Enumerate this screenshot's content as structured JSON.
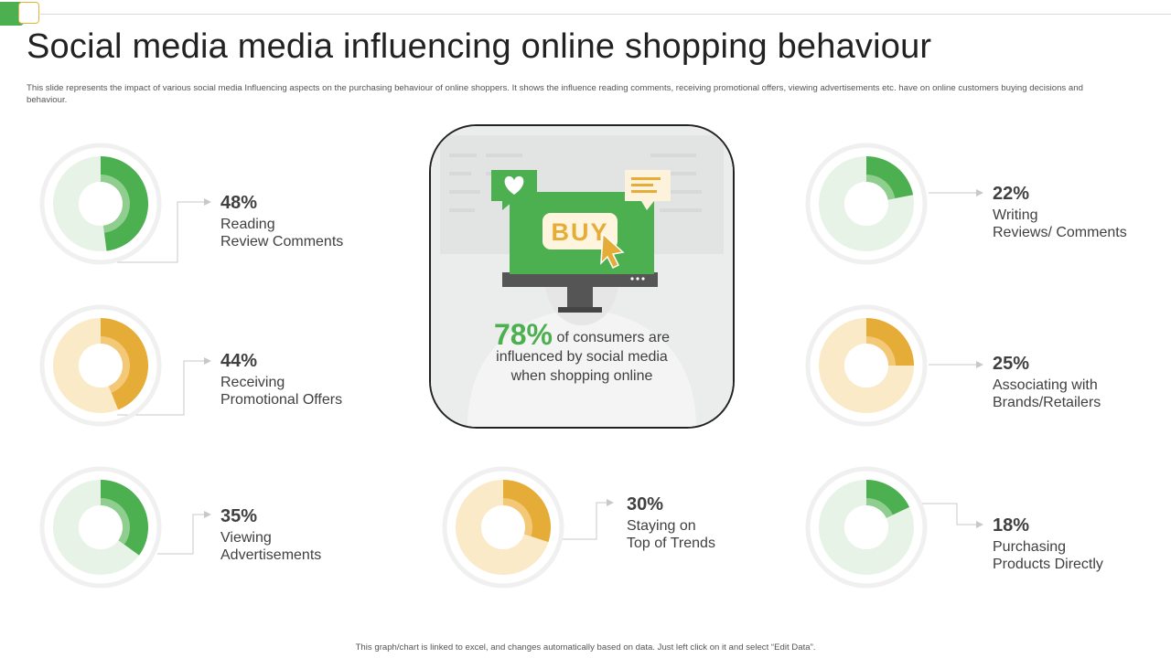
{
  "slide": {
    "title": "Social media media influencing online shopping behaviour",
    "description": "This slide represents the impact of various social media Influencing aspects on the purchasing behaviour of online shoppers. It shows the influence reading comments, receiving promotional offers, viewing advertisements etc. have on online customers buying decisions and behaviour.",
    "footer": "This graph/chart is linked to excel, and changes automatically based on data. Just left click on it and select “Edit Data”."
  },
  "center": {
    "value": "78%",
    "text_line1": "of consumers are",
    "text_line2": "influenced by social media",
    "text_line3": "when shopping online",
    "illustration_label": "BUY",
    "icons": [
      "heart-icon",
      "message-icon",
      "cursor-icon",
      "monitor-icon"
    ]
  },
  "colors": {
    "green": "#4caf50",
    "gold": "#e6ac38",
    "green_track": "#e8f3e8",
    "gold_track": "#fbeac8",
    "ring_bg": "#f0f0f0"
  },
  "metrics": [
    {
      "id": "reading",
      "pct_label": "48%",
      "line1": "Reading",
      "line2": "Review Comments"
    },
    {
      "id": "promotional",
      "pct_label": "44%",
      "line1": "Receiving",
      "line2": "Promotional Offers"
    },
    {
      "id": "ads",
      "pct_label": "35%",
      "line1": "Viewing",
      "line2": "Advertisements"
    },
    {
      "id": "trends",
      "pct_label": "30%",
      "line1": "Staying on",
      "line2": "Top of Trends"
    },
    {
      "id": "writing",
      "pct_label": "22%",
      "line1": "Writing",
      "line2": "Reviews/ Comments"
    },
    {
      "id": "brands",
      "pct_label": "25%",
      "line1": "Associating with",
      "line2": "Brands/Retailers"
    },
    {
      "id": "purchasing",
      "pct_label": "18%",
      "line1": "Purchasing",
      "line2": "Products Directly"
    }
  ],
  "chart_data": [
    {
      "type": "pie",
      "title": "",
      "labels": [
        "Reading Review Comments",
        ""
      ],
      "values": [
        48,
        52
      ],
      "color": "green"
    },
    {
      "type": "pie",
      "title": "",
      "labels": [
        "Receiving Promotional Offers",
        ""
      ],
      "values": [
        44,
        56
      ],
      "color": "gold"
    },
    {
      "type": "pie",
      "title": "",
      "labels": [
        "Viewing Advertisements",
        ""
      ],
      "values": [
        35,
        65
      ],
      "color": "green"
    },
    {
      "type": "pie",
      "title": "",
      "labels": [
        "Staying on Top of Trends",
        ""
      ],
      "values": [
        30,
        70
      ],
      "color": "gold"
    },
    {
      "type": "pie",
      "title": "",
      "labels": [
        "Writing Reviews/ Comments",
        ""
      ],
      "values": [
        22,
        78
      ],
      "color": "green"
    },
    {
      "type": "pie",
      "title": "",
      "labels": [
        "Associating with Brands/Retailers",
        ""
      ],
      "values": [
        25,
        75
      ],
      "color": "gold"
    },
    {
      "type": "pie",
      "title": "",
      "labels": [
        "Purchasing Products Directly",
        ""
      ],
      "values": [
        18,
        82
      ],
      "color": "green"
    }
  ]
}
